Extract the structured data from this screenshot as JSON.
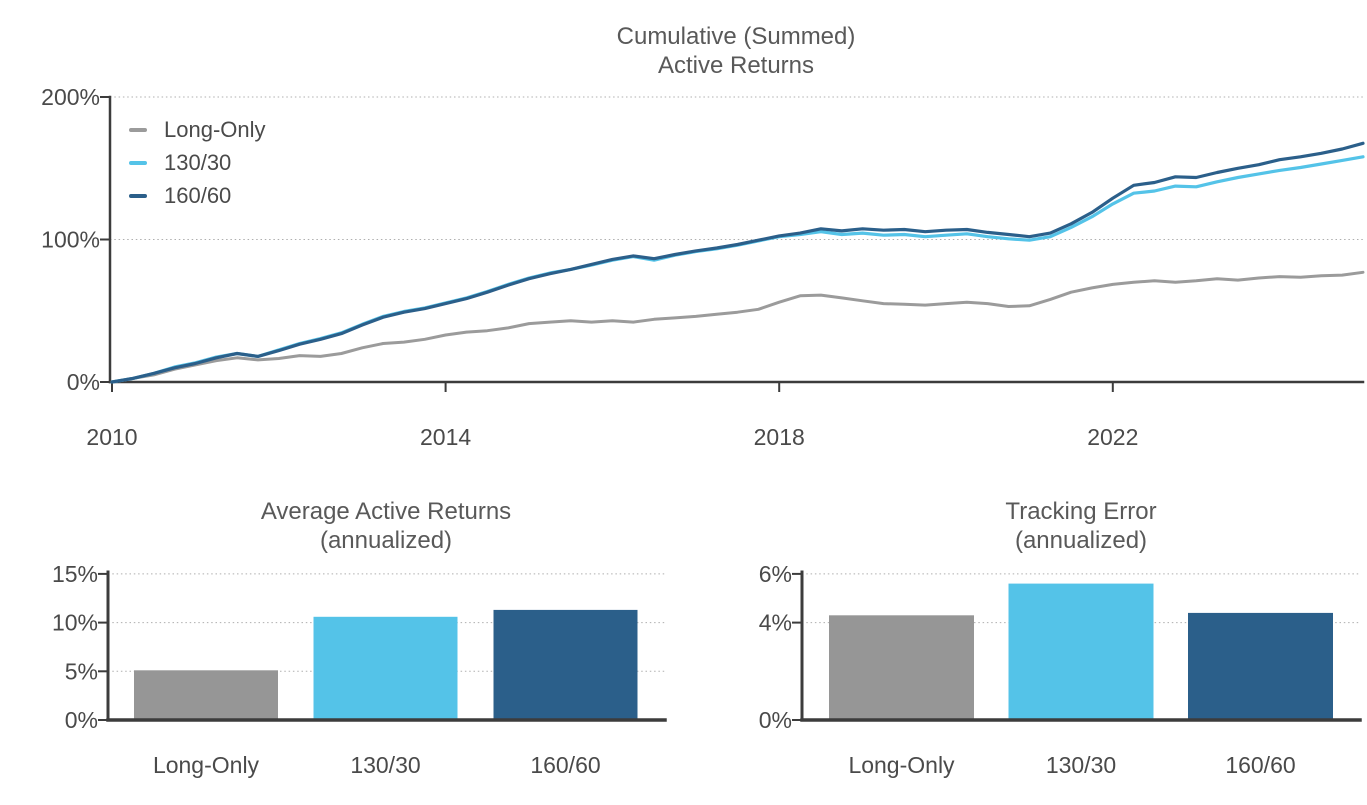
{
  "figure": {
    "background": "#ffffff",
    "axis_color": "#3c3c3c",
    "grid_color": "#afafaf",
    "tick_text_color": "#4a4a4a",
    "title_text_color": "#595959"
  },
  "chart_data": [
    {
      "type": "line",
      "title": "Cumulative (Summed)\nActive Returns",
      "legend_position": "upper-left",
      "x_range": [
        2010,
        2025
      ],
      "ylim_pct": [
        0,
        200
      ],
      "y_ticks_pct": [
        0,
        100,
        200
      ],
      "y_tick_labels": [
        "0%",
        "100%",
        "200%"
      ],
      "grid_y_pct": [
        100,
        200
      ],
      "x_ticks_years": [
        2010,
        2014,
        2018,
        2022
      ],
      "x_tick_labels": [
        "2010",
        "2014",
        "2018",
        "2022"
      ],
      "x": [
        2010,
        2010.25,
        2010.5,
        2010.75,
        2011,
        2011.25,
        2011.5,
        2011.75,
        2012,
        2012.25,
        2012.5,
        2012.75,
        2013,
        2013.25,
        2013.5,
        2013.75,
        2014,
        2014.25,
        2014.5,
        2014.75,
        2015,
        2015.25,
        2015.5,
        2015.75,
        2016,
        2016.25,
        2016.5,
        2016.75,
        2017,
        2017.25,
        2017.5,
        2017.75,
        2018,
        2018.25,
        2018.5,
        2018.75,
        2019,
        2019.25,
        2019.5,
        2019.75,
        2020,
        2020.25,
        2020.5,
        2020.75,
        2021,
        2021.25,
        2021.5,
        2021.75,
        2022,
        2022.25,
        2022.5,
        2022.75,
        2023,
        2023.25,
        2023.5,
        2023.75,
        2024,
        2024.25,
        2024.5,
        2024.75,
        2025
      ],
      "series": [
        {
          "name": "Long-Only",
          "color": "#9b9b9b",
          "stroke_width": 3,
          "values": [
            0,
            2.5,
            5,
            9,
            12,
            15,
            17,
            15.5,
            16.5,
            18.5,
            18,
            20,
            24,
            27,
            28,
            30,
            33,
            35,
            36,
            38,
            41,
            42,
            43,
            42,
            43,
            42,
            44,
            45,
            46,
            47.5,
            49,
            51,
            56,
            60.5,
            61,
            59,
            57,
            55,
            54.5,
            54,
            55,
            56,
            55,
            53,
            53.5,
            58,
            63,
            66,
            68.5,
            70,
            71,
            70,
            71,
            72.5,
            71.5,
            73,
            74,
            73.5,
            74.5,
            75,
            77
          ]
        },
        {
          "name": "130/30",
          "color": "#54c3e8",
          "stroke_width": 3.2,
          "values": [
            0,
            2.5,
            6,
            10.5,
            13.5,
            17.5,
            20,
            18,
            22.5,
            27,
            30.5,
            34.5,
            40.5,
            46,
            49.5,
            52,
            55.5,
            59,
            63.5,
            68.5,
            73,
            76.5,
            79,
            82,
            85.5,
            88,
            85.5,
            89,
            91.5,
            93.5,
            96,
            99,
            102,
            103.5,
            105.5,
            103.5,
            104.5,
            103,
            103.5,
            102,
            103,
            104,
            102,
            100.5,
            99.5,
            102,
            108.5,
            116,
            125,
            132.5,
            134,
            137.5,
            137,
            140.5,
            143.5,
            146,
            148.5,
            150.5,
            153,
            155.5,
            158
          ]
        },
        {
          "name": "160/60",
          "color": "#2b5f8a",
          "stroke_width": 3.2,
          "values": [
            0,
            2.5,
            6,
            10,
            13,
            17,
            20,
            18,
            22,
            26.5,
            30,
            34,
            40,
            45.5,
            49,
            51.5,
            55,
            58.5,
            63,
            68,
            72.5,
            76,
            79,
            82.5,
            86,
            88.5,
            86.5,
            89.5,
            92,
            94,
            96.5,
            99.5,
            102.5,
            104.5,
            107.5,
            106,
            107.5,
            106.5,
            107,
            105.5,
            106.5,
            107,
            105,
            103.5,
            102,
            104.5,
            111,
            119,
            129,
            138,
            140,
            144,
            143.5,
            147,
            150,
            152.5,
            156,
            158,
            160.5,
            163.5,
            167.5
          ]
        }
      ]
    },
    {
      "type": "bar",
      "title": "Average Active Returns\n(annualized)",
      "categories": [
        "Long-Only",
        "130/30",
        "160/60"
      ],
      "values": [
        5.1,
        10.6,
        11.3
      ],
      "colors": [
        "#969696",
        "#54c3e8",
        "#2b5f8a"
      ],
      "ylim_pct": [
        0,
        15.5
      ],
      "y_ticks_pct": [
        0,
        5,
        10,
        15
      ],
      "y_tick_labels": [
        "0%",
        "5%",
        "10%",
        "15%"
      ],
      "grid_y_pct": [
        5,
        10,
        15
      ]
    },
    {
      "type": "bar",
      "title": "Tracking Error\n(annualized)",
      "categories": [
        "Long-Only",
        "130/30",
        "160/60"
      ],
      "values": [
        4.3,
        5.6,
        4.4
      ],
      "colors": [
        "#969696",
        "#54c3e8",
        "#2b5f8a"
      ],
      "ylim_pct": [
        0,
        6.2
      ],
      "y_ticks_pct": [
        0,
        4,
        6
      ],
      "y_tick_labels": [
        "0%",
        "4%",
        "6%"
      ],
      "grid_y_pct": [
        4,
        6
      ]
    }
  ]
}
